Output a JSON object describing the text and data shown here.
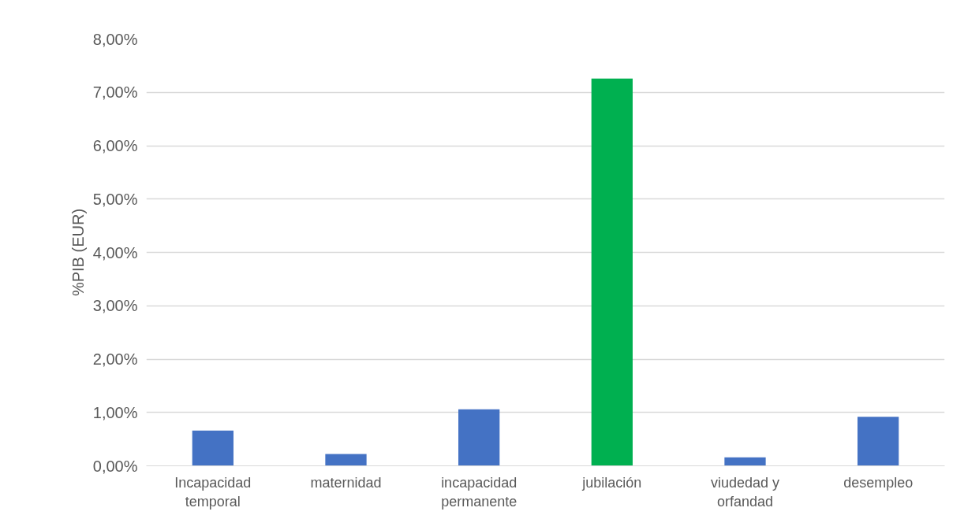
{
  "chart_data": {
    "type": "bar",
    "ylabel": "%PIB (EUR)",
    "categories": [
      "Incapacidad temporal",
      "maternidad",
      "incapacidad permanente",
      "jubilación",
      "viudedad y orfandad",
      "desempleo"
    ],
    "values": [
      0.66,
      0.22,
      1.06,
      7.26,
      0.16,
      0.92
    ],
    "colors": [
      "#4472c4",
      "#4472c4",
      "#4472c4",
      "#00b050",
      "#4472c4",
      "#4472c4"
    ],
    "ylim": [
      0,
      8
    ],
    "yticks": [
      {
        "value": 0,
        "label": "0,00%"
      },
      {
        "value": 1,
        "label": "1,00%"
      },
      {
        "value": 2,
        "label": "2,00%"
      },
      {
        "value": 3,
        "label": "3,00%"
      },
      {
        "value": 4,
        "label": "4,00%"
      },
      {
        "value": 5,
        "label": "5,00%"
      },
      {
        "value": 6,
        "label": "6,00%"
      },
      {
        "value": 7,
        "label": "7,00%"
      },
      {
        "value": 8,
        "label": "8,00%"
      }
    ],
    "grid": "y"
  }
}
